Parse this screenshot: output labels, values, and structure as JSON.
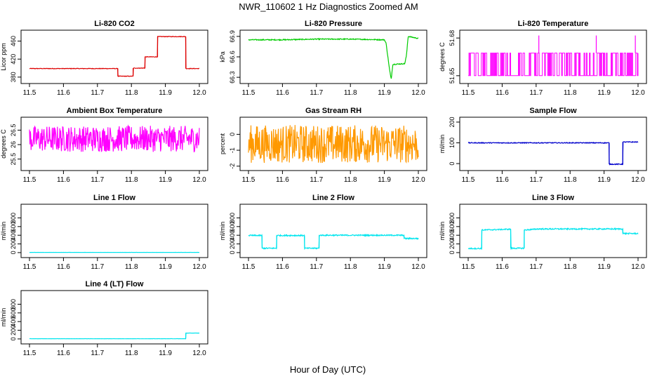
{
  "page": {
    "title": "NWR_110602  1 Hz Diagnostics Zoomed AM",
    "xlabel": "Hour of Day (UTC)"
  },
  "chart_data": [
    {
      "type": "line",
      "title": "Li-820 CO2",
      "ylabel": "Licor ppm",
      "color": "#dd0000",
      "xlim": [
        11.5,
        12.0
      ],
      "xticks": [
        11.5,
        11.6,
        11.7,
        11.8,
        11.9,
        12.0
      ],
      "ylim": [
        372,
        478
      ],
      "yticks": [
        380,
        420,
        460
      ],
      "series": [
        {
          "x": [
            11.5,
            11.76,
            11.76,
            11.805,
            11.805,
            11.84,
            11.84,
            11.877,
            11.877,
            11.96,
            11.96,
            12.0
          ],
          "y": [
            399,
            399,
            382,
            382,
            400,
            400,
            425,
            425,
            470,
            470,
            399,
            399
          ],
          "noise": 0.6
        }
      ]
    },
    {
      "type": "line",
      "title": "Li-820 Pressure",
      "ylabel": "kPa",
      "color": "#00cc00",
      "xlim": [
        11.5,
        12.0
      ],
      "xticks": [
        11.5,
        11.6,
        11.7,
        11.8,
        11.9,
        12.0
      ],
      "ylim": [
        66.25,
        66.95
      ],
      "yticks": [
        66.3,
        66.6,
        66.9
      ],
      "series": [
        {
          "x": [
            11.5,
            11.6,
            11.7,
            11.8,
            11.9,
            11.905,
            11.915,
            11.92,
            11.925,
            11.96,
            11.965,
            11.97,
            12.0
          ],
          "y": [
            66.85,
            66.85,
            66.86,
            66.86,
            66.85,
            66.8,
            66.42,
            66.27,
            66.49,
            66.5,
            66.62,
            66.9,
            66.87
          ],
          "noise": 0.007
        }
      ]
    },
    {
      "type": "line",
      "title": "Li-820 Temperature",
      "ylabel": "degrees C",
      "color": "#ff00ff",
      "xlim": [
        11.5,
        12.0
      ],
      "xticks": [
        11.5,
        11.6,
        11.7,
        11.8,
        11.9,
        12.0
      ],
      "ylim": [
        51.646,
        51.684
      ],
      "yticks": [
        51.65,
        51.68
      ],
      "series": [
        {
          "x": [
            11.5,
            12.0
          ],
          "y": [
            51.665,
            51.665
          ],
          "toggle": [
            51.65,
            51.668
          ],
          "spikes_x": [
            11.708,
            11.877,
            11.992
          ],
          "spikes_y": 51.682
        }
      ]
    },
    {
      "type": "line",
      "title": "Ambient Box Temperature",
      "ylabel": "degrees C",
      "color": "#ff00ff",
      "xlim": [
        11.5,
        12.0
      ],
      "xticks": [
        11.5,
        11.6,
        11.7,
        11.8,
        11.9,
        12.0
      ],
      "ylim": [
        25.2,
        26.85
      ],
      "yticks": [
        25.5,
        26.0,
        26.5
      ],
      "series": [
        {
          "x": [
            11.5,
            12.0
          ],
          "y": [
            26.2,
            26.2
          ],
          "noise": 0.45
        }
      ]
    },
    {
      "type": "line",
      "title": "Gas Stream RH",
      "ylabel": "percent",
      "color": "#ff9900",
      "xlim": [
        11.5,
        12.0
      ],
      "xticks": [
        11.5,
        11.6,
        11.7,
        11.8,
        11.9,
        12.0
      ],
      "ylim": [
        -2.1,
        0.9
      ],
      "yticks": [
        -2,
        -1,
        0
      ],
      "series": [
        {
          "x": [
            11.5,
            12.0
          ],
          "y": [
            -0.6,
            -0.6
          ],
          "noise": 1.2
        }
      ]
    },
    {
      "type": "line",
      "title": "Sample Flow",
      "ylabel": "ml/min",
      "color": "#0000cc",
      "xlim": [
        11.5,
        12.0
      ],
      "xticks": [
        11.5,
        11.6,
        11.7,
        11.8,
        11.9,
        12.0
      ],
      "ylim": [
        -20,
        210
      ],
      "yticks": [
        0,
        100,
        200
      ],
      "series": [
        {
          "x": [
            11.5,
            11.915,
            11.915,
            11.955,
            11.955,
            12.0
          ],
          "y": [
            100,
            100,
            -3,
            -3,
            104,
            104
          ],
          "noise": 2
        }
      ]
    },
    {
      "type": "line",
      "title": "Line 1 Flow",
      "ylabel": "ml/min",
      "color": "#00e5ee",
      "xlim": [
        11.5,
        12.0
      ],
      "xticks": [
        11.5,
        11.6,
        11.7,
        11.8,
        11.9,
        12.0
      ],
      "ylim": [
        -50,
        1050
      ],
      "yticks": [
        0,
        200,
        400,
        600,
        800
      ],
      "series": [
        {
          "x": [
            11.5,
            12.0
          ],
          "y": [
            5,
            5
          ],
          "noise": 1
        }
      ]
    },
    {
      "type": "line",
      "title": "Line 2 Flow",
      "ylabel": "ml/min",
      "color": "#00e5ee",
      "xlim": [
        11.5,
        12.0
      ],
      "xticks": [
        11.5,
        11.6,
        11.7,
        11.8,
        11.9,
        12.0
      ],
      "ylim": [
        -50,
        1050
      ],
      "yticks": [
        0,
        200,
        400,
        600,
        800
      ],
      "series": [
        {
          "x": [
            11.5,
            11.54,
            11.54,
            11.583,
            11.583,
            11.665,
            11.665,
            11.708,
            11.708,
            11.958,
            11.958,
            12.0
          ],
          "y": [
            395,
            395,
            100,
            100,
            395,
            395,
            100,
            100,
            400,
            400,
            325,
            325
          ],
          "noise": 14
        }
      ]
    },
    {
      "type": "line",
      "title": "Line 3 Flow",
      "ylabel": "ml/min",
      "color": "#00e5ee",
      "xlim": [
        11.5,
        12.0
      ],
      "xticks": [
        11.5,
        11.6,
        11.7,
        11.8,
        11.9,
        12.0
      ],
      "ylim": [
        -50,
        1050
      ],
      "yticks": [
        0,
        200,
        400,
        600,
        800
      ],
      "series": [
        {
          "x": [
            11.5,
            11.54,
            11.54,
            11.625,
            11.625,
            11.665,
            11.665,
            11.7,
            11.7,
            11.955,
            11.955,
            12.0
          ],
          "y": [
            95,
            95,
            520,
            540,
            100,
            100,
            520,
            540,
            545,
            545,
            440,
            440
          ],
          "noise": 14
        }
      ]
    },
    {
      "type": "line",
      "title": "Line 4 (LT) Flow",
      "ylabel": "ml/min",
      "color": "#00e5ee",
      "xlim": [
        11.5,
        12.0
      ],
      "xticks": [
        11.5,
        11.6,
        11.7,
        11.8,
        11.9,
        12.0
      ],
      "ylim": [
        -50,
        1050
      ],
      "yticks": [
        0,
        200,
        400,
        600,
        800
      ],
      "series": [
        {
          "x": [
            11.5,
            11.96,
            11.96,
            12.0
          ],
          "y": [
            5,
            5,
            135,
            135
          ],
          "noise": 2
        }
      ]
    }
  ]
}
